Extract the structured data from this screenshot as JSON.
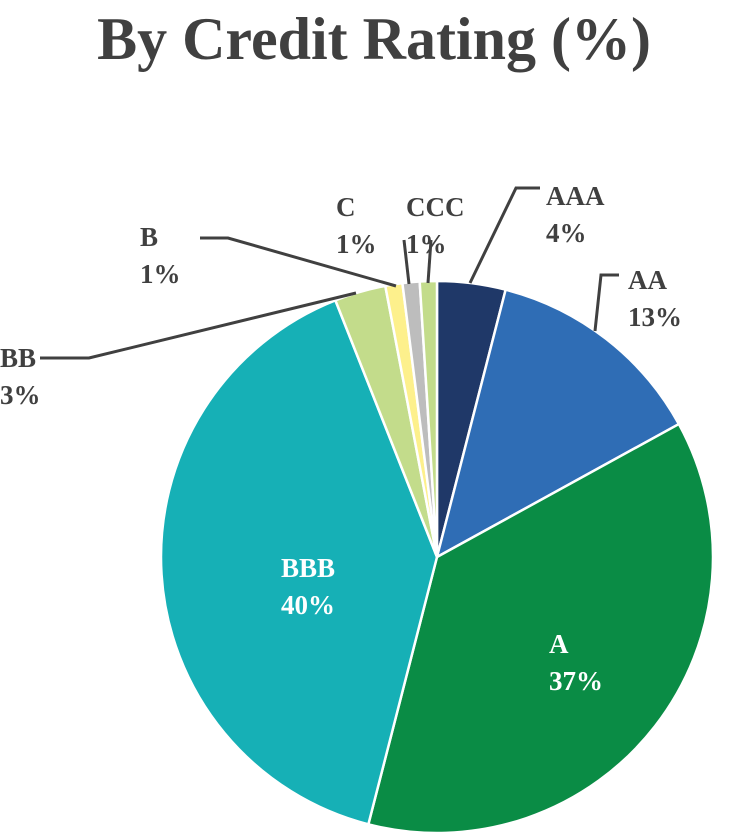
{
  "chart_data": {
    "type": "pie",
    "title": "By Credit Rating (%)",
    "slices": [
      {
        "label": "AAA",
        "value": 4,
        "display": "4%",
        "color": "#1f3868",
        "label_color": "#404040",
        "label_pos": "outside"
      },
      {
        "label": "AA",
        "value": 13,
        "display": "13%",
        "color": "#2f6db5",
        "label_color": "#404040",
        "label_pos": "outside"
      },
      {
        "label": "A",
        "value": 37,
        "display": "37%",
        "color": "#0a8c45",
        "label_color": "#ffffff",
        "label_pos": "inside"
      },
      {
        "label": "BBB",
        "value": 40,
        "display": "40%",
        "color": "#16b0b6",
        "label_color": "#ffffff",
        "label_pos": "inside"
      },
      {
        "label": "BB",
        "value": 3,
        "display": "3%",
        "color": "#c3dc8b",
        "label_color": "#404040",
        "label_pos": "outside"
      },
      {
        "label": "B",
        "value": 1,
        "display": "1%",
        "color": "#fdf08c",
        "label_color": "#404040",
        "label_pos": "outside"
      },
      {
        "label": "C",
        "value": 1,
        "display": "1%",
        "color": "#bdbdbd",
        "label_color": "#404040",
        "label_pos": "outside"
      },
      {
        "label": "CCC",
        "value": 1,
        "display": "1%",
        "color": "#c3dc8b",
        "label_color": "#404040",
        "label_pos": "outside"
      }
    ],
    "start_angle_deg": 0,
    "direction": "clockwise",
    "legend": "none"
  }
}
